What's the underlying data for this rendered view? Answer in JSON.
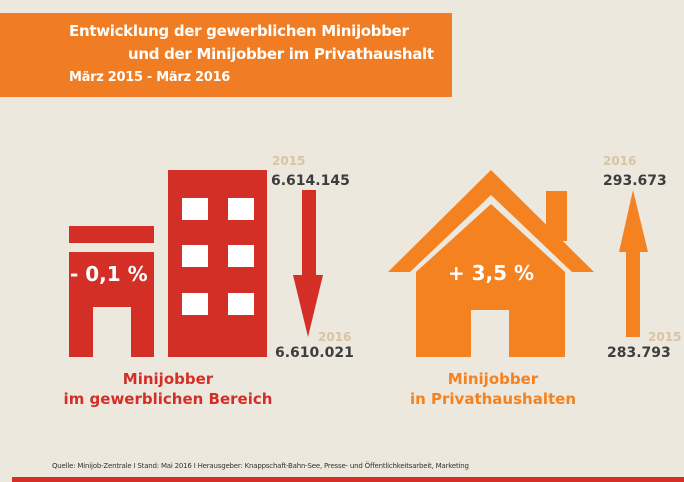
{
  "header": {
    "title_line1": "Entwicklung der gewerblichen Minijobber",
    "title_line2": "und der Minijobber im Privathaushalt",
    "period": "März 2015 - März 2016"
  },
  "commercial": {
    "start_year": "2015",
    "start_value": "6.614.145",
    "end_year": "2016",
    "end_value": "6.610.021",
    "change": "- 0,1 %",
    "label_line1": "Minijobber",
    "label_line2": "im gewerblichen Bereich",
    "color": "#d32f27",
    "icon": "building-icon",
    "trend": "arrow-down-icon"
  },
  "household": {
    "start_year": "2015",
    "start_value": "283.793",
    "end_year": "2016",
    "end_value": "293.673",
    "change": "+ 3,5 %",
    "label_line1": "Minijobber",
    "label_line2": "in Privathaushalten",
    "color": "#f58220",
    "icon": "house-icon",
    "trend": "arrow-up-icon"
  },
  "footer": {
    "source": "Quelle: Minijob-Zentrale I Stand: Mai 2016 I Herausgeber: Knappschaft-Bahn-See, Presse- und Öffentlichkeitsarbeit, Marketing"
  }
}
